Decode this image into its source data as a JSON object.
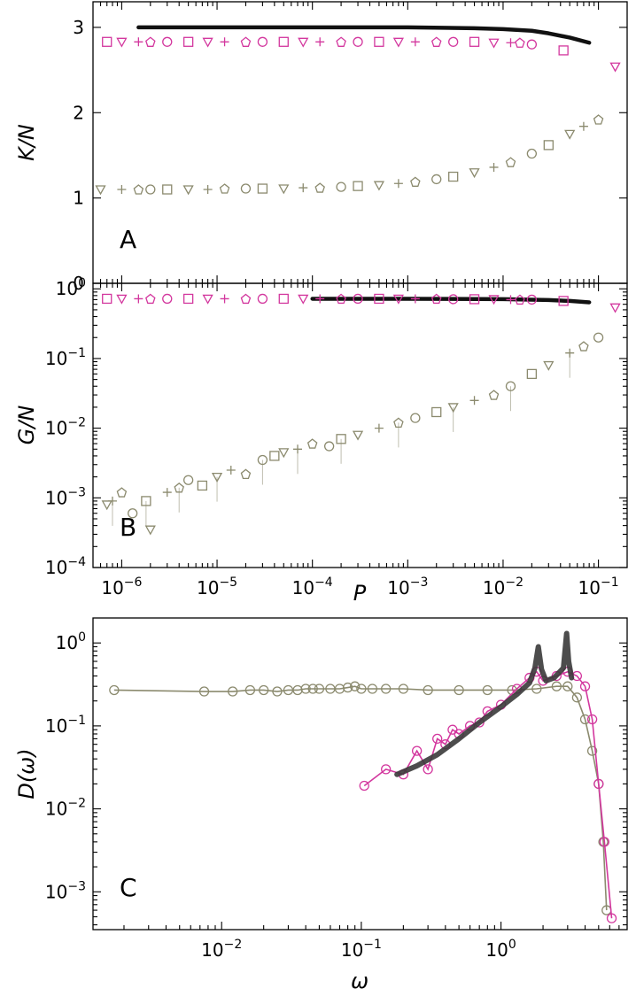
{
  "colors": {
    "gray": "#8b8a6e",
    "magenta": "#d3379e",
    "black": "#111111",
    "dark": "#3a3a3a"
  },
  "chart_data": [
    {
      "id": "A",
      "type": "scatter",
      "panel_label": "A",
      "xscale": "log",
      "yscale": "linear",
      "xlim": [
        5e-07,
        0.2
      ],
      "ylim": [
        0,
        3.3
      ],
      "xlabel": "",
      "ylabel": "K/N",
      "yticks": [
        {
          "value": 0,
          "label": "0"
        },
        {
          "value": 1,
          "label": "1"
        },
        {
          "value": 2,
          "label": "2"
        },
        {
          "value": 3,
          "label": "3"
        }
      ],
      "series": [
        {
          "name": "theory",
          "kind": "line",
          "color": "black",
          "x": [
            1.5e-06,
            1e-05,
            0.0001,
            0.001,
            0.005,
            0.01,
            0.02,
            0.03,
            0.05,
            0.08
          ],
          "y": [
            3.0,
            3.0,
            3.0,
            3.0,
            2.99,
            2.98,
            2.96,
            2.93,
            2.88,
            2.82
          ]
        },
        {
          "name": "magenta",
          "kind": "scatter",
          "color": "magenta",
          "x": [
            7e-07,
            1e-06,
            1.5e-06,
            2e-06,
            3e-06,
            5e-06,
            8e-06,
            1.2e-05,
            2e-05,
            3e-05,
            5e-05,
            8e-05,
            0.00012,
            0.0002,
            0.0003,
            0.0005,
            0.0008,
            0.0012,
            0.002,
            0.003,
            0.005,
            0.008,
            0.012,
            0.015,
            0.02,
            0.043,
            0.15
          ],
          "y": [
            2.83,
            2.83,
            2.83,
            2.83,
            2.83,
            2.83,
            2.83,
            2.83,
            2.83,
            2.83,
            2.83,
            2.83,
            2.83,
            2.83,
            2.83,
            2.83,
            2.83,
            2.83,
            2.83,
            2.83,
            2.83,
            2.82,
            2.82,
            2.82,
            2.8,
            2.73,
            2.54
          ]
        },
        {
          "name": "gray",
          "kind": "scatter",
          "color": "gray",
          "x": [
            6e-07,
            1e-06,
            1.5e-06,
            2e-06,
            3e-06,
            5e-06,
            8e-06,
            1.2e-05,
            2e-05,
            3e-05,
            5e-05,
            8e-05,
            0.00012,
            0.0002,
            0.0003,
            0.0005,
            0.0008,
            0.0012,
            0.002,
            0.003,
            0.005,
            0.008,
            0.012,
            0.02,
            0.03,
            0.05,
            0.07,
            0.1
          ],
          "y": [
            1.1,
            1.1,
            1.1,
            1.1,
            1.1,
            1.1,
            1.1,
            1.11,
            1.11,
            1.11,
            1.11,
            1.12,
            1.12,
            1.13,
            1.14,
            1.15,
            1.17,
            1.19,
            1.22,
            1.25,
            1.3,
            1.36,
            1.42,
            1.52,
            1.62,
            1.75,
            1.84,
            1.92
          ]
        }
      ]
    },
    {
      "id": "B",
      "type": "scatter",
      "panel_label": "B",
      "xscale": "log",
      "yscale": "log",
      "xlim": [
        5e-07,
        0.2
      ],
      "ylim": [
        0.0001,
        1.2
      ],
      "xlabel": "P",
      "ylabel": "G/N",
      "xticks": [
        {
          "value": 1e-06,
          "base": "10",
          "exp": "−6"
        },
        {
          "value": 1e-05,
          "base": "10",
          "exp": "−5"
        },
        {
          "value": 0.0001,
          "base": "10",
          "exp": "−4"
        },
        {
          "value": 0.001,
          "base": "10",
          "exp": "−3"
        },
        {
          "value": 0.01,
          "base": "10",
          "exp": "−2"
        },
        {
          "value": 0.1,
          "base": "10",
          "exp": "−1"
        }
      ],
      "yticks": [
        {
          "value": 0.0001,
          "base": "10",
          "exp": "−4"
        },
        {
          "value": 0.001,
          "base": "10",
          "exp": "−3"
        },
        {
          "value": 0.01,
          "base": "10",
          "exp": "−2"
        },
        {
          "value": 0.1,
          "base": "10",
          "exp": "−1"
        },
        {
          "value": 1,
          "base": "10",
          "exp": "0"
        }
      ],
      "series": [
        {
          "name": "theory",
          "kind": "line",
          "color": "black",
          "x": [
            0.0001,
            0.001,
            0.01,
            0.03,
            0.05,
            0.08
          ],
          "y": [
            0.72,
            0.72,
            0.71,
            0.69,
            0.67,
            0.64
          ]
        },
        {
          "name": "magenta",
          "kind": "scatter",
          "color": "magenta",
          "x": [
            7e-07,
            1e-06,
            1.5e-06,
            2e-06,
            3e-06,
            5e-06,
            8e-06,
            1.2e-05,
            2e-05,
            3e-05,
            5e-05,
            8e-05,
            0.00012,
            0.0002,
            0.0003,
            0.0005,
            0.0008,
            0.0012,
            0.002,
            0.003,
            0.005,
            0.008,
            0.012,
            0.015,
            0.02,
            0.043,
            0.15
          ],
          "y": [
            0.72,
            0.72,
            0.72,
            0.72,
            0.72,
            0.72,
            0.72,
            0.72,
            0.72,
            0.72,
            0.72,
            0.72,
            0.72,
            0.72,
            0.72,
            0.72,
            0.72,
            0.72,
            0.72,
            0.71,
            0.71,
            0.71,
            0.7,
            0.7,
            0.7,
            0.67,
            0.54
          ]
        },
        {
          "name": "gray",
          "kind": "scatter",
          "color": "gray",
          "x": [
            7e-07,
            8e-07,
            1e-06,
            1.3e-06,
            1.8e-06,
            2e-06,
            3e-06,
            4e-06,
            5e-06,
            7e-06,
            1e-05,
            1.4e-05,
            2e-05,
            3e-05,
            4e-05,
            5e-05,
            7e-05,
            0.0001,
            0.00015,
            0.0002,
            0.0003,
            0.0005,
            0.0008,
            0.0012,
            0.002,
            0.003,
            0.005,
            0.008,
            0.012,
            0.02,
            0.03,
            0.05,
            0.07,
            0.1
          ],
          "y": [
            0.0008,
            0.0009,
            0.0012,
            0.0006,
            0.0009,
            0.00035,
            0.0012,
            0.0014,
            0.0018,
            0.0015,
            0.002,
            0.0025,
            0.0022,
            0.0035,
            0.004,
            0.0045,
            0.005,
            0.006,
            0.0055,
            0.007,
            0.008,
            0.01,
            0.012,
            0.014,
            0.017,
            0.02,
            0.025,
            0.03,
            0.04,
            0.06,
            0.08,
            0.12,
            0.15,
            0.2
          ]
        }
      ]
    },
    {
      "id": "C",
      "type": "line",
      "panel_label": "C",
      "xscale": "log",
      "yscale": "log",
      "xlim": [
        0.0012,
        8
      ],
      "ylim": [
        0.00035,
        2
      ],
      "xlabel": "ω",
      "ylabel": "D(ω)",
      "xticks": [
        {
          "value": 0.01,
          "base": "10",
          "exp": "−2"
        },
        {
          "value": 0.1,
          "base": "10",
          "exp": "−1"
        },
        {
          "value": 1,
          "base": "10",
          "exp": "0"
        }
      ],
      "yticks": [
        {
          "value": 0.001,
          "base": "10",
          "exp": "−3"
        },
        {
          "value": 0.01,
          "base": "10",
          "exp": "−2"
        },
        {
          "value": 0.1,
          "base": "10",
          "exp": "−1"
        },
        {
          "value": 1,
          "base": "10",
          "exp": "0"
        }
      ],
      "series": [
        {
          "name": "gray",
          "color": "gray",
          "x": [
            0.0017,
            0.0075,
            0.012,
            0.016,
            0.02,
            0.025,
            0.03,
            0.035,
            0.04,
            0.045,
            0.05,
            0.06,
            0.07,
            0.08,
            0.09,
            0.1,
            0.12,
            0.15,
            0.2,
            0.3,
            0.5,
            0.8,
            1.2,
            1.8,
            2.5,
            3.0,
            3.5,
            4.0,
            4.5,
            5.0,
            5.4,
            5.7
          ],
          "y": [
            0.27,
            0.26,
            0.26,
            0.27,
            0.27,
            0.26,
            0.27,
            0.27,
            0.28,
            0.28,
            0.28,
            0.28,
            0.28,
            0.29,
            0.3,
            0.28,
            0.28,
            0.28,
            0.28,
            0.27,
            0.27,
            0.27,
            0.27,
            0.28,
            0.3,
            0.3,
            0.22,
            0.12,
            0.05,
            0.02,
            0.004,
            0.0006
          ]
        },
        {
          "name": "magenta",
          "color": "magenta",
          "x": [
            0.105,
            0.15,
            0.2,
            0.25,
            0.3,
            0.35,
            0.4,
            0.45,
            0.5,
            0.6,
            0.7,
            0.8,
            1.0,
            1.3,
            1.6,
            1.8,
            2.0,
            2.5,
            3.0,
            3.5,
            4.0,
            4.5,
            5.0,
            5.5,
            6.2
          ],
          "y": [
            0.019,
            0.03,
            0.026,
            0.05,
            0.03,
            0.07,
            0.06,
            0.09,
            0.08,
            0.1,
            0.11,
            0.15,
            0.18,
            0.28,
            0.38,
            0.45,
            0.35,
            0.4,
            0.45,
            0.4,
            0.3,
            0.12,
            0.02,
            0.004,
            0.00048
          ]
        },
        {
          "name": "theory",
          "color": "dark",
          "x": [
            0.18,
            0.25,
            0.35,
            0.5,
            0.7,
            1.0,
            1.3,
            1.6,
            1.75,
            1.85,
            1.95,
            2.1,
            2.4,
            2.8,
            2.95,
            3.05,
            3.2
          ],
          "y": [
            0.026,
            0.033,
            0.045,
            0.07,
            0.11,
            0.17,
            0.24,
            0.33,
            0.5,
            0.9,
            0.48,
            0.35,
            0.38,
            0.5,
            1.3,
            0.6,
            0.38
          ]
        }
      ]
    }
  ]
}
